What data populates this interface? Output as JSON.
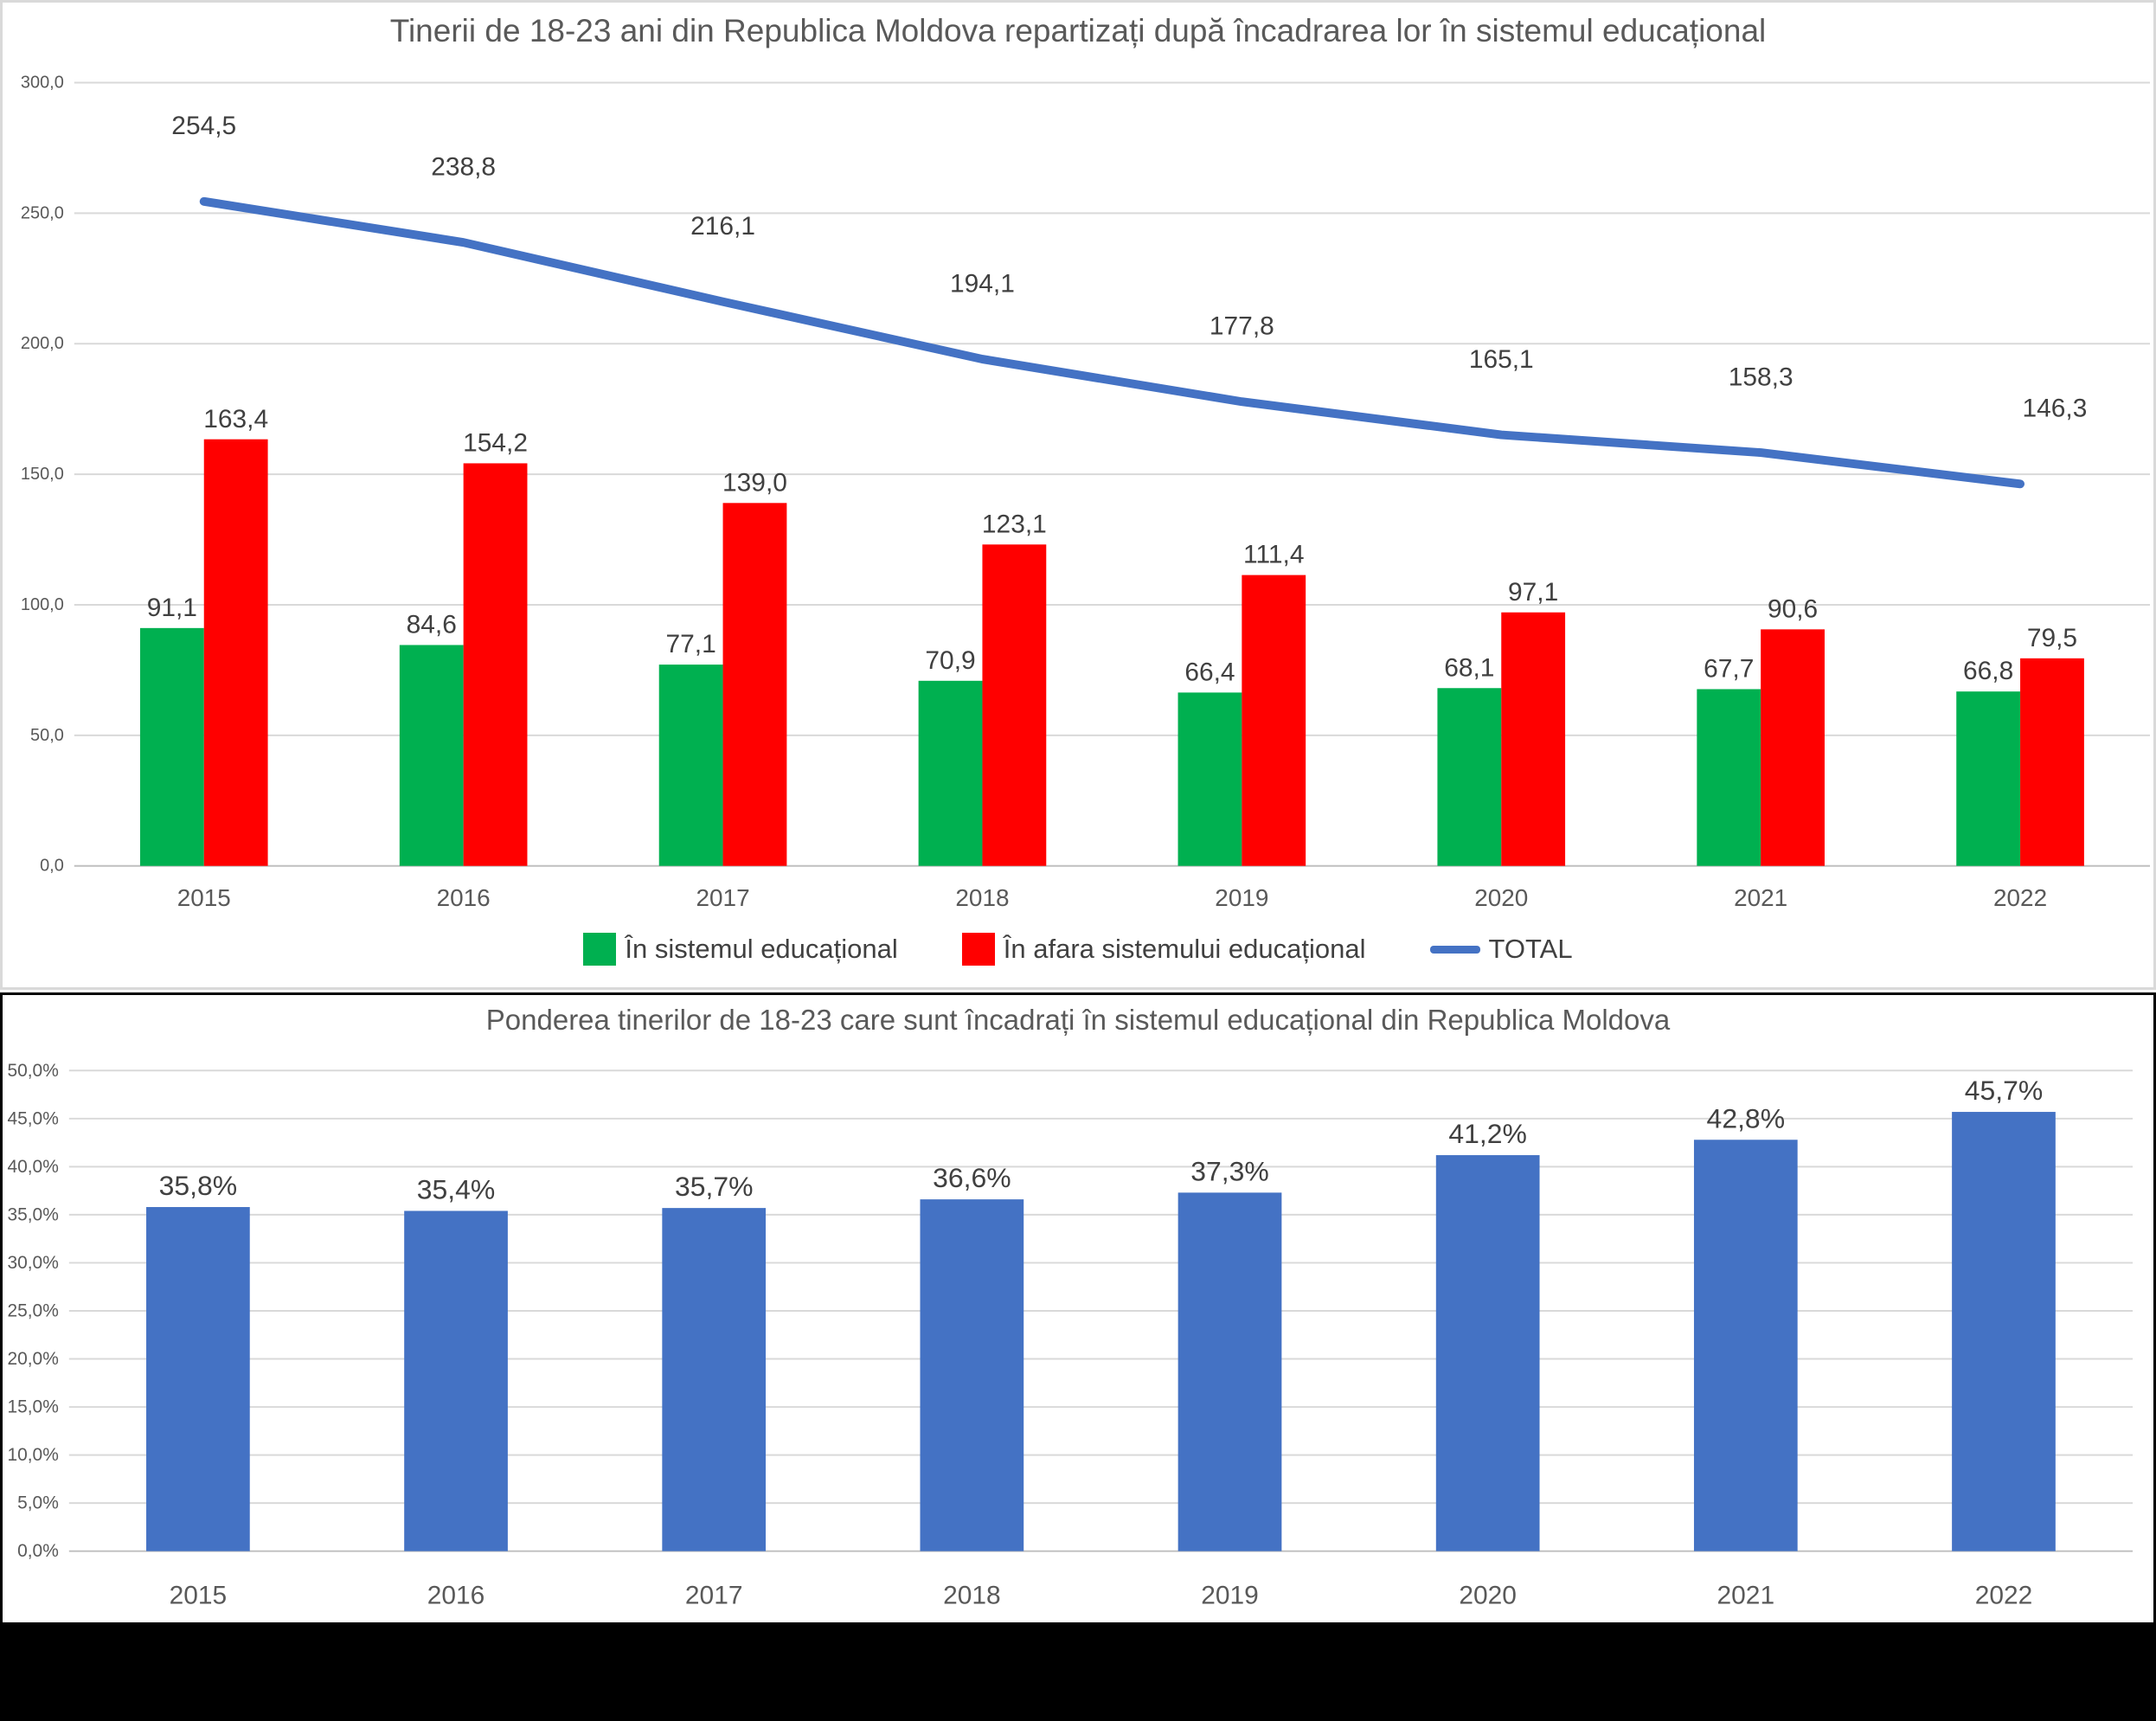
{
  "colors": {
    "green": "#00B050",
    "red": "#FF0000",
    "blue": "#4472C4",
    "title_text": "#595959",
    "tick_text": "#595959",
    "label_text": "#404040",
    "gridline": "#D9D9D9",
    "axis_line": "#BFBFBF",
    "top_panel_border": "#D9D9D9",
    "bottom_panel_border": "#000000",
    "footer_bar": "#000000"
  },
  "chart_data": [
    {
      "id": "youth-18-23-by-enrollment",
      "type": "bar+line",
      "title": "Tinerii de 18-23 ani din Republica Moldova repartizați după încadrarea lor în sistemul educațional",
      "categories": [
        "2015",
        "2016",
        "2017",
        "2018",
        "2019",
        "2020",
        "2021",
        "2022"
      ],
      "series": [
        {
          "name": "În sistemul educațional",
          "type": "bar",
          "color": "#00B050",
          "values": [
            91.1,
            84.6,
            77.1,
            70.9,
            66.4,
            68.1,
            67.7,
            66.8
          ],
          "labels": [
            "91,1",
            "84,6",
            "77,1",
            "70,9",
            "66,4",
            "68,1",
            "67,7",
            "66,8"
          ]
        },
        {
          "name": "În afara sistemului educațional",
          "type": "bar",
          "color": "#FF0000",
          "values": [
            163.4,
            154.2,
            139.0,
            123.1,
            111.4,
            97.1,
            90.6,
            79.5
          ],
          "labels": [
            "163,4",
            "154,2",
            "139,0",
            "123,1",
            "111,4",
            "97,1",
            "90,6",
            "79,5"
          ]
        },
        {
          "name": "TOTAL",
          "type": "line",
          "color": "#4472C4",
          "values": [
            254.5,
            238.8,
            216.1,
            194.1,
            177.8,
            165.1,
            158.3,
            146.3
          ],
          "labels": [
            "254,5",
            "238,8",
            "216,1",
            "194,1",
            "177,8",
            "165,1",
            "158,3",
            "146,3"
          ]
        }
      ],
      "y_axis": {
        "min": 0,
        "max": 300,
        "step": 50,
        "tick_labels": [
          "300,0",
          "250,0",
          "200,0",
          "150,0",
          "100,0",
          "50,0",
          "0,0"
        ]
      },
      "grid": true,
      "legend_position": "bottom"
    },
    {
      "id": "share-of-youth-in-education",
      "type": "bar",
      "title": "Ponderea tinerilor de 18-23 care sunt încadrați în sistemul educațional din Republica Moldova",
      "categories": [
        "2015",
        "2016",
        "2017",
        "2018",
        "2019",
        "2020",
        "2021",
        "2022"
      ],
      "series": [
        {
          "name": "",
          "type": "bar",
          "color": "#4472C4",
          "values": [
            35.8,
            35.4,
            35.7,
            36.6,
            37.3,
            41.2,
            42.8,
            45.7
          ],
          "labels": [
            "35,8%",
            "35,4%",
            "35,7%",
            "36,6%",
            "37,3%",
            "41,2%",
            "42,8%",
            "45,7%"
          ]
        }
      ],
      "y_axis": {
        "min": 0,
        "max": 50,
        "step": 5,
        "tick_labels": [
          "50,0%",
          "45,0%",
          "40,0%",
          "35,0%",
          "30,0%",
          "25,0%",
          "20,0%",
          "15,0%",
          "10,0%",
          "5,0%",
          "0,0%"
        ]
      },
      "grid": true,
      "legend_position": "none"
    }
  ]
}
